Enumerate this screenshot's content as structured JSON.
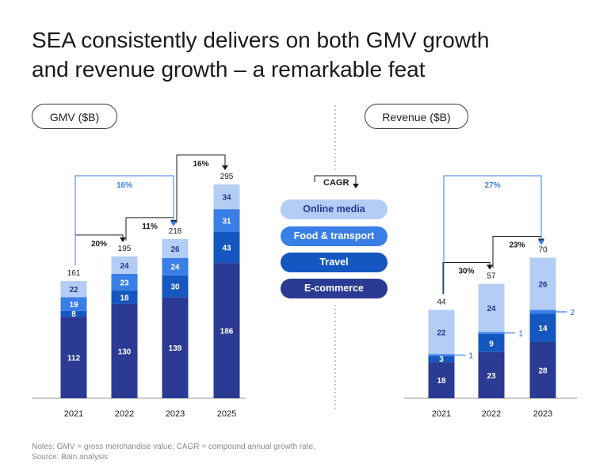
{
  "page": {
    "title_line1": "SEA consistently delivers on both GMV growth",
    "title_line2": "and revenue growth – a remarkable feat",
    "notes_line1": "Notes: GMV = gross merchandise value; CAGR = compound annual growth rate.",
    "notes_line2": "Source: Bain analysis"
  },
  "legend": {
    "cagr_label": "CAGR",
    "items": [
      {
        "label": "Online media",
        "color": "#b3cdf5",
        "text_color": "#1f3b8c"
      },
      {
        "label": "Food & transport",
        "color": "#3a7fe6",
        "text_color": "#ffffff"
      },
      {
        "label": "Travel",
        "color": "#1557c0",
        "text_color": "#ffffff"
      },
      {
        "label": "E-commerce",
        "color": "#2b3a92",
        "text_color": "#ffffff"
      }
    ]
  },
  "colors": {
    "E-commerce": "#2b3a92",
    "Travel": "#1557c0",
    "Food & transport": "#3a7fe6",
    "Online media": "#b3cdf5",
    "cagr_blue_arrow": "#3a7fe6",
    "cagr_black_arrow": "#1a1a1a"
  },
  "chart_data": [
    {
      "type": "bar",
      "stacked": true,
      "title": "GMV ($B)",
      "categories": [
        "2021",
        "2022",
        "2023",
        "2025"
      ],
      "series": [
        {
          "name": "E-commerce",
          "values": [
            112,
            130,
            139,
            186
          ]
        },
        {
          "name": "Travel",
          "values": [
            8,
            18,
            30,
            43
          ]
        },
        {
          "name": "Food & transport",
          "values": [
            19,
            23,
            24,
            31
          ]
        },
        {
          "name": "Online media",
          "values": [
            22,
            24,
            26,
            34
          ]
        }
      ],
      "totals": [
        161,
        195,
        218,
        295
      ],
      "cagr_annotations": [
        {
          "from": "2021",
          "to": "2022",
          "label": "20%",
          "style": "black"
        },
        {
          "from": "2022",
          "to": "2023",
          "label": "11%",
          "style": "black"
        },
        {
          "from": "2023",
          "to": "2025",
          "label": "16%",
          "style": "black"
        },
        {
          "from": "2021",
          "to": "2023",
          "label": "16%",
          "style": "blue"
        }
      ]
    },
    {
      "type": "bar",
      "stacked": true,
      "title": "Revenue ($B)",
      "categories": [
        "2021",
        "2022",
        "2023"
      ],
      "series": [
        {
          "name": "E-commerce",
          "values": [
            18,
            23,
            28
          ]
        },
        {
          "name": "Travel",
          "values": [
            3,
            9,
            14
          ]
        },
        {
          "name": "Food & transport",
          "values": [
            1,
            1,
            2
          ]
        },
        {
          "name": "Online media",
          "values": [
            22,
            24,
            26
          ]
        }
      ],
      "totals": [
        44,
        57,
        70
      ],
      "cagr_annotations": [
        {
          "from": "2021",
          "to": "2022",
          "label": "30%",
          "style": "black"
        },
        {
          "from": "2022",
          "to": "2023",
          "label": "23%",
          "style": "black"
        },
        {
          "from": "2021",
          "to": "2023",
          "label": "27%",
          "style": "blue"
        }
      ]
    }
  ]
}
